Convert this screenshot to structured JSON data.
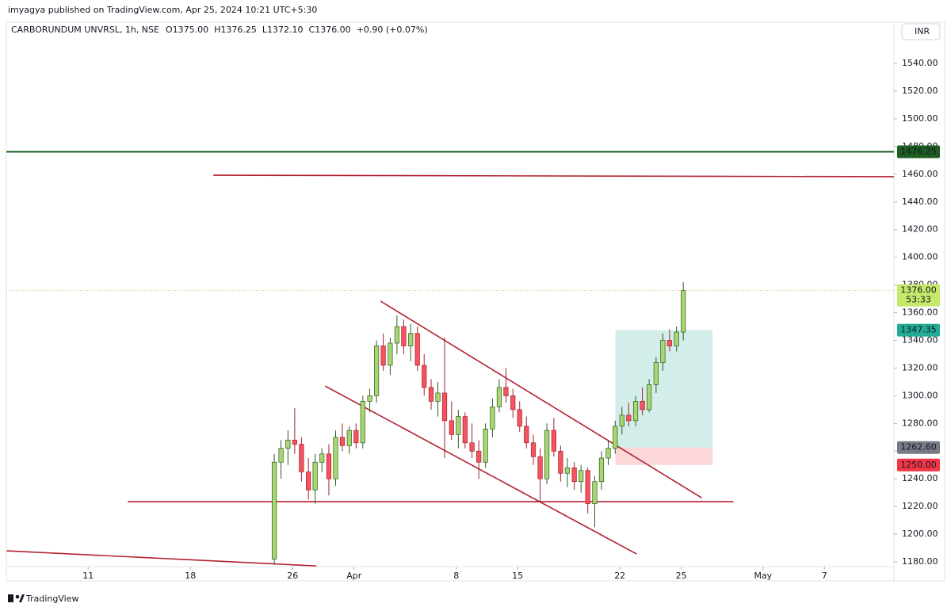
{
  "header": {
    "published": "imyagya published on TradingView.com, Apr 25, 2024 10:21 UTC+5:30",
    "symbol": "CARBORUNDUM UNVRSL, 1h, NSE",
    "ohlc": [
      "O1375.00",
      "H1376.25",
      "L1372.10",
      "C1376.00",
      "+0.90 (+0.07%)"
    ],
    "currency": "INR"
  },
  "footer": {
    "brand": "TradingView"
  },
  "chart_data": {
    "type": "candlestick",
    "up_color": "#a8d672",
    "down_color": "#f7525f",
    "xlim": [
      -4,
      39.4
    ],
    "ylim": [
      1176.6,
      1569.8
    ],
    "grid": false,
    "xticks": [
      {
        "value": 0,
        "label": "11"
      },
      {
        "value": 5,
        "label": "18"
      },
      {
        "value": 10,
        "label": "26"
      },
      {
        "value": 13,
        "label": "Apr"
      },
      {
        "value": 18,
        "label": "8"
      },
      {
        "value": 21,
        "label": "15"
      },
      {
        "value": 26,
        "label": "22"
      },
      {
        "value": 29,
        "label": "25"
      },
      {
        "value": 33,
        "label": "May"
      },
      {
        "value": 36,
        "label": "7"
      }
    ],
    "yticks": [
      {
        "value": 1180,
        "label": "1180.00"
      },
      {
        "value": 1200,
        "label": "1200.00"
      },
      {
        "value": 1220,
        "label": "1220.00"
      },
      {
        "value": 1240,
        "label": "1240.00"
      },
      {
        "value": 1260,
        "label": "1260.00"
      },
      {
        "value": 1280,
        "label": "1280.00"
      },
      {
        "value": 1300,
        "label": "1300.00"
      },
      {
        "value": 1320,
        "label": "1320.00"
      },
      {
        "value": 1340,
        "label": "1340.00"
      },
      {
        "value": 1360,
        "label": "1360.00"
      },
      {
        "value": 1380,
        "label": "1380.00"
      },
      {
        "value": 1400,
        "label": "1400.00"
      },
      {
        "value": 1420,
        "label": "1420.00"
      },
      {
        "value": 1440,
        "label": "1440.00"
      },
      {
        "value": 1460,
        "label": "1460.00"
      },
      {
        "value": 1480,
        "label": "1480.00"
      },
      {
        "value": 1500,
        "label": "1500.00"
      },
      {
        "value": 1520,
        "label": "1520.00"
      },
      {
        "value": 1540,
        "label": "1540.00"
      }
    ],
    "x": [
      9.1,
      9.43,
      9.77,
      10.1,
      10.43,
      10.77,
      11.1,
      11.43,
      11.77,
      12.1,
      12.43,
      12.77,
      13.1,
      13.43,
      13.77,
      14.1,
      14.43,
      14.77,
      15.1,
      15.43,
      15.77,
      16.1,
      16.43,
      16.77,
      17.1,
      17.43,
      17.77,
      18.1,
      18.43,
      18.77,
      19.1,
      19.43,
      19.77,
      20.1,
      20.43,
      20.77,
      21.1,
      21.43,
      21.77,
      22.1,
      22.43,
      22.77,
      23.1,
      23.43,
      23.77,
      24.1,
      24.43,
      24.77,
      25.1,
      25.43,
      25.77,
      26.1,
      26.43,
      26.77,
      27.1,
      27.43,
      27.77,
      28.1,
      28.43,
      28.77,
      29.1
    ],
    "ohlc": [
      [
        1182,
        1258,
        1178,
        1252
      ],
      [
        1252,
        1268,
        1240,
        1262
      ],
      [
        1262,
        1275,
        1250,
        1268
      ],
      [
        1268,
        1291,
        1258,
        1265
      ],
      [
        1265,
        1270,
        1238,
        1245
      ],
      [
        1245,
        1255,
        1225,
        1232
      ],
      [
        1232,
        1258,
        1222,
        1252
      ],
      [
        1252,
        1262,
        1245,
        1258
      ],
      [
        1258,
        1265,
        1228,
        1240
      ],
      [
        1240,
        1275,
        1235,
        1270
      ],
      [
        1270,
        1280,
        1260,
        1264
      ],
      [
        1264,
        1278,
        1258,
        1275
      ],
      [
        1275,
        1280,
        1262,
        1266
      ],
      [
        1266,
        1300,
        1262,
        1296
      ],
      [
        1296,
        1305,
        1288,
        1300
      ],
      [
        1300,
        1340,
        1295,
        1336
      ],
      [
        1336,
        1345,
        1318,
        1322
      ],
      [
        1322,
        1342,
        1315,
        1338
      ],
      [
        1338,
        1358,
        1330,
        1350
      ],
      [
        1350,
        1355,
        1330,
        1336
      ],
      [
        1336,
        1352,
        1325,
        1345
      ],
      [
        1345,
        1350,
        1318,
        1322
      ],
      [
        1322,
        1330,
        1300,
        1306
      ],
      [
        1306,
        1312,
        1290,
        1296
      ],
      [
        1296,
        1310,
        1285,
        1302
      ],
      [
        1302,
        1342,
        1255,
        1282
      ],
      [
        1282,
        1296,
        1268,
        1272
      ],
      [
        1272,
        1290,
        1262,
        1285
      ],
      [
        1285,
        1288,
        1262,
        1266
      ],
      [
        1266,
        1280,
        1255,
        1260
      ],
      [
        1260,
        1268,
        1240,
        1252
      ],
      [
        1252,
        1280,
        1248,
        1276
      ],
      [
        1276,
        1298,
        1270,
        1292
      ],
      [
        1292,
        1312,
        1288,
        1306
      ],
      [
        1306,
        1320,
        1295,
        1300
      ],
      [
        1300,
        1305,
        1284,
        1290
      ],
      [
        1290,
        1296,
        1274,
        1278
      ],
      [
        1278,
        1285,
        1262,
        1266
      ],
      [
        1266,
        1272,
        1250,
        1256
      ],
      [
        1256,
        1262,
        1223,
        1240
      ],
      [
        1240,
        1280,
        1236,
        1275
      ],
      [
        1275,
        1284,
        1256,
        1260
      ],
      [
        1260,
        1264,
        1238,
        1244
      ],
      [
        1244,
        1255,
        1234,
        1248
      ],
      [
        1248,
        1252,
        1232,
        1238
      ],
      [
        1238,
        1250,
        1230,
        1246
      ],
      [
        1246,
        1248,
        1215,
        1222
      ],
      [
        1222,
        1242,
        1205,
        1238
      ],
      [
        1238,
        1260,
        1232,
        1255
      ],
      [
        1255,
        1268,
        1250,
        1262
      ],
      [
        1262,
        1282,
        1258,
        1278
      ],
      [
        1278,
        1292,
        1272,
        1286
      ],
      [
        1286,
        1295,
        1278,
        1282
      ],
      [
        1282,
        1300,
        1278,
        1296
      ],
      [
        1296,
        1306,
        1286,
        1290
      ],
      [
        1290,
        1312,
        1288,
        1308
      ],
      [
        1308,
        1328,
        1302,
        1324
      ],
      [
        1324,
        1345,
        1318,
        1340
      ],
      [
        1340,
        1348,
        1332,
        1336
      ],
      [
        1336,
        1350,
        1332,
        1346
      ],
      [
        1346,
        1382,
        1340,
        1376
      ]
    ],
    "trendlines": [
      {
        "x": [
          6.12,
          39.42
        ],
        "y": [
          1459.3,
          1458.2
        ]
      },
      {
        "x": [
          14.3,
          30.0
        ],
        "y": [
          1368.3,
          1226.3
        ]
      },
      {
        "x": [
          11.59,
          26.82
        ],
        "y": [
          1307.0,
          1185.7
        ]
      },
      {
        "x": [
          1.94,
          31.55
        ],
        "y": [
          1223.5,
          1223.5
        ]
      },
      {
        "x": [
          -3.99,
          11.16
        ],
        "y": [
          1188.0,
          1177.1
        ]
      }
    ],
    "trendline_color": "#b2222f",
    "level": {
      "value": 1476.25,
      "label": "1476.25",
      "color": "#1b5e20"
    },
    "last": {
      "value": 1376,
      "label": "1376.00",
      "timer": "53:33",
      "color": "#c6e96a"
    },
    "position": {
      "x": [
        25.78,
        30.54
      ],
      "target": {
        "value": 1347.35,
        "label": "1347.35",
        "color": "#22ab94"
      },
      "entry": {
        "value": 1262.6,
        "label": "1262.60",
        "color": "#787b86"
      },
      "stop": {
        "value": 1250,
        "label": "1250.00",
        "color": "#f23645"
      }
    }
  }
}
